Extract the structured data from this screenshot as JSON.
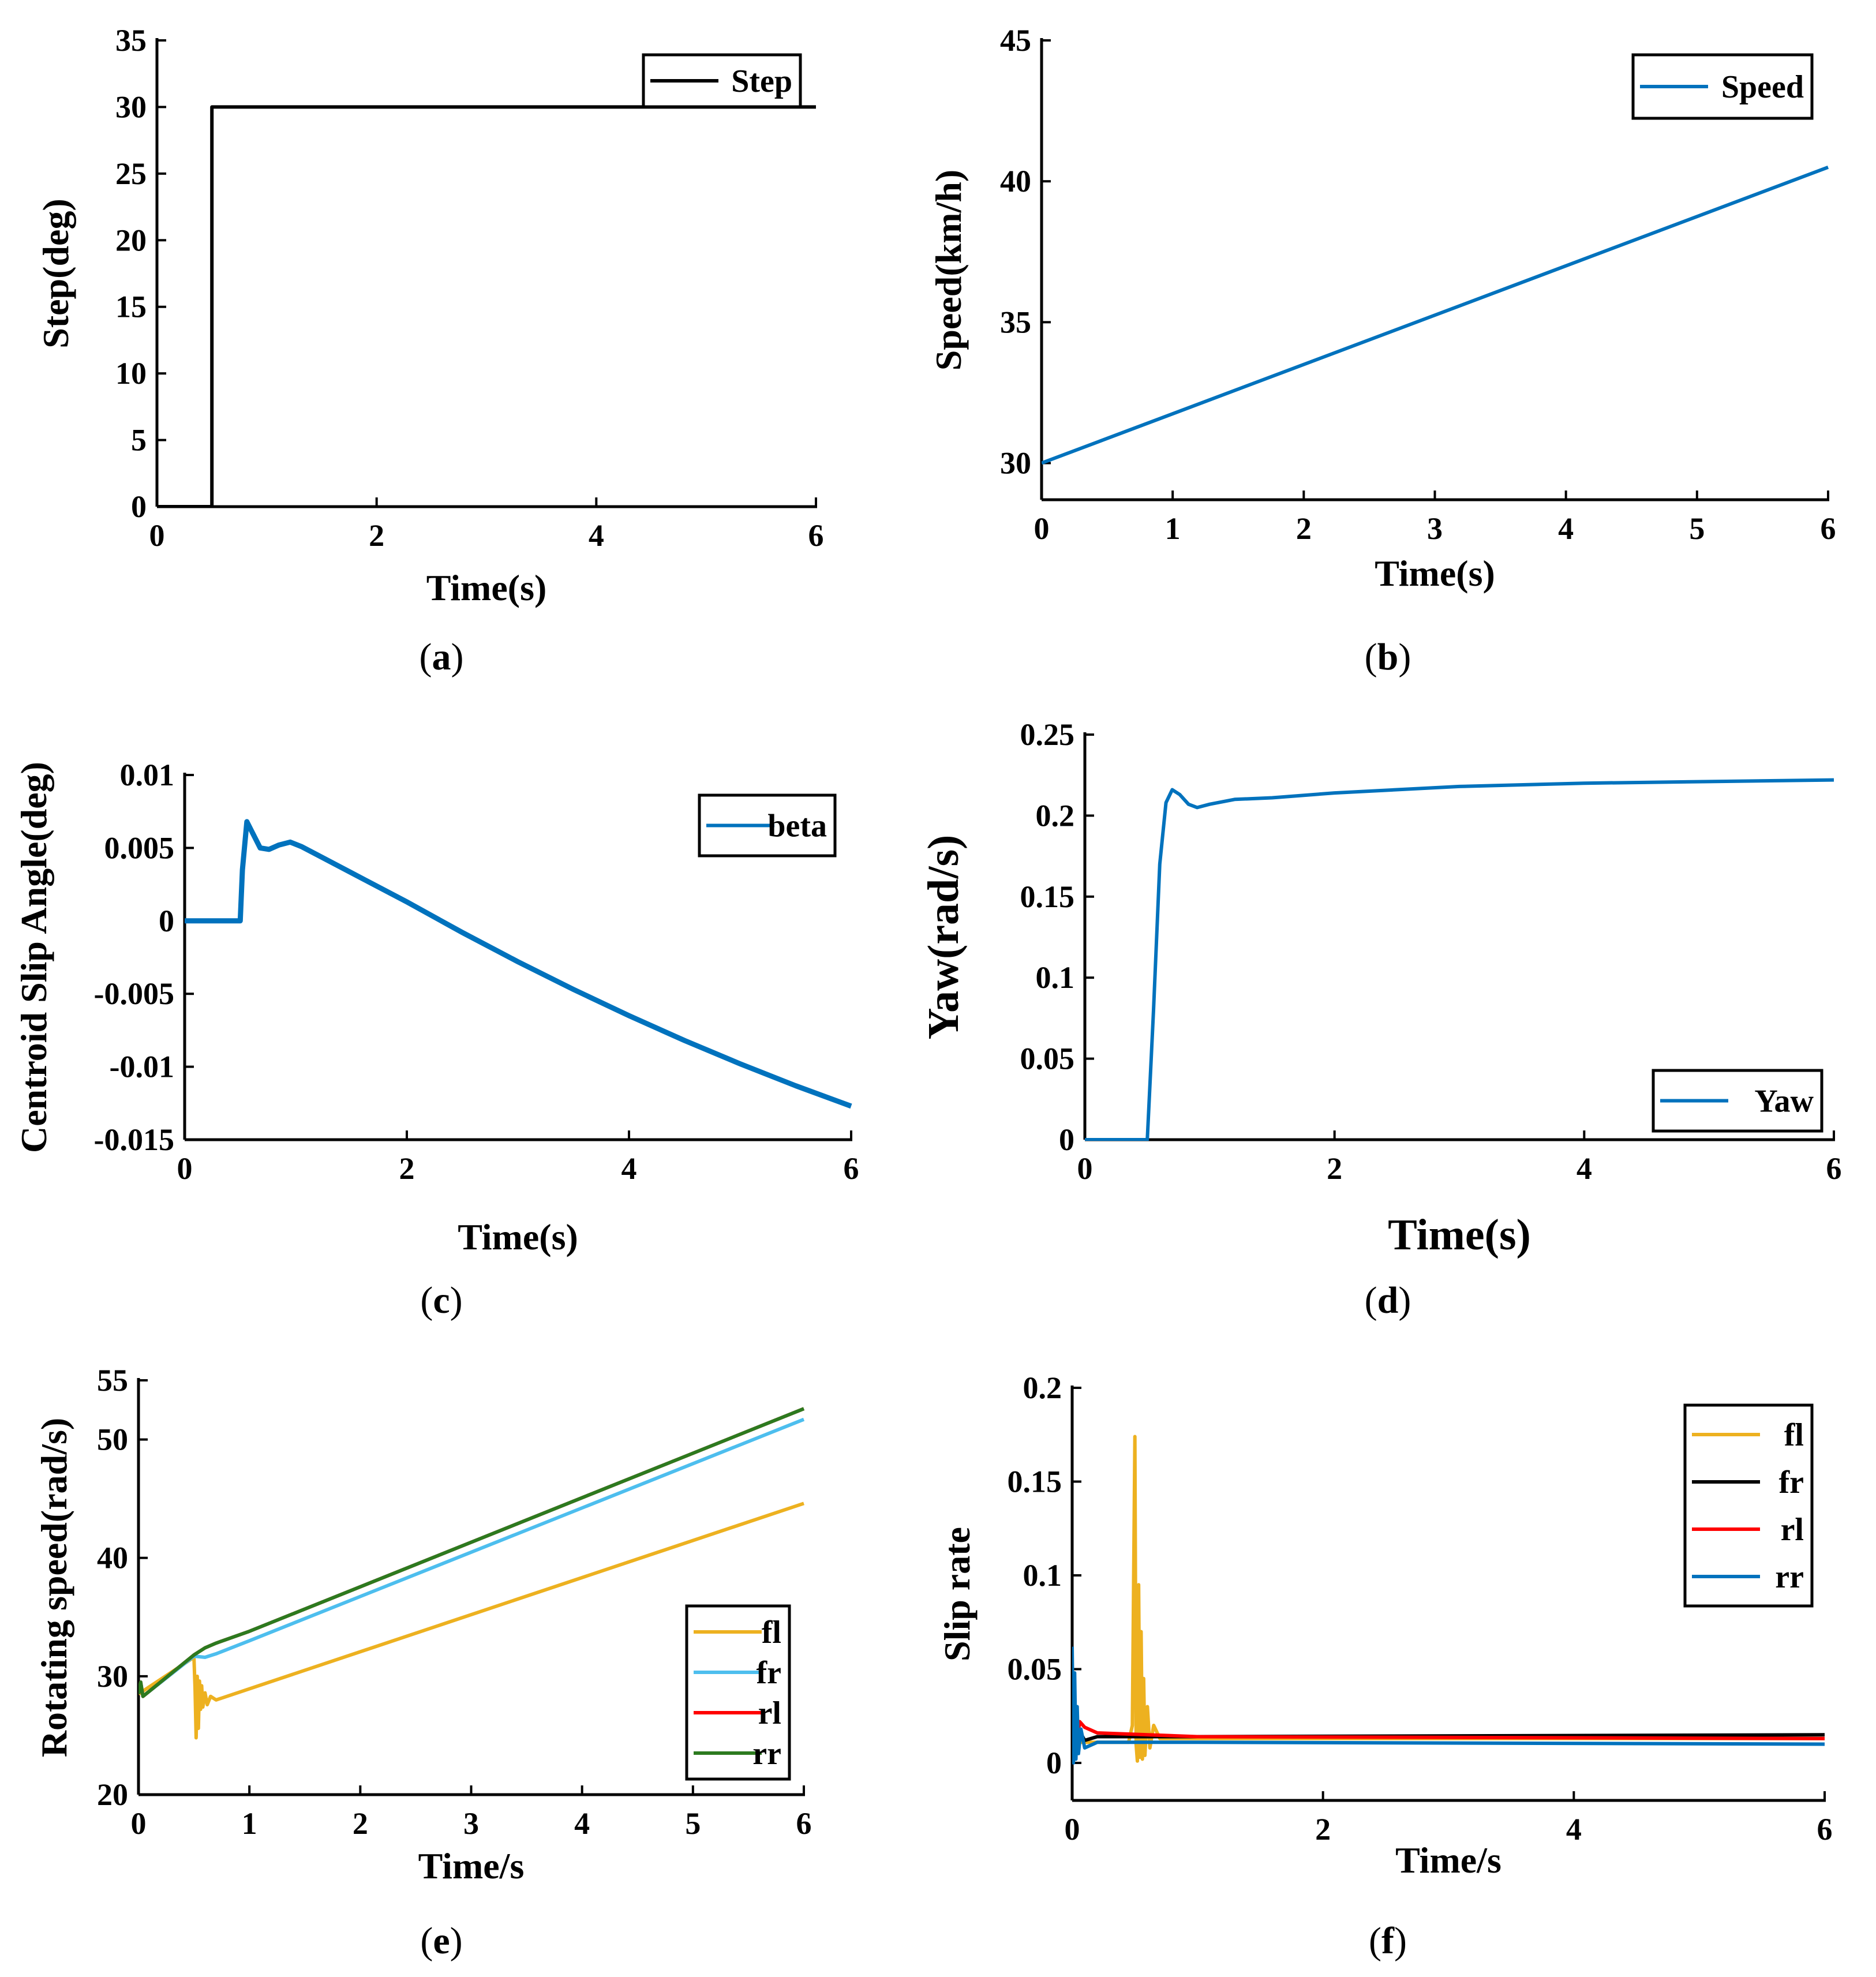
{
  "chart_data": [
    {
      "id": "a",
      "type": "line",
      "caption_letter": "a",
      "xlabel": "Time(s)",
      "ylabel": "Step(deg)",
      "xlim": [
        0,
        6
      ],
      "ylim": [
        0,
        35
      ],
      "xticks": [
        "0",
        "2",
        "4",
        "6"
      ],
      "yticks": [
        "0",
        "5",
        "10",
        "15",
        "20",
        "25",
        "30",
        "35"
      ],
      "legend_position": "top-right",
      "series": [
        {
          "name": "Step",
          "color": "#000000",
          "x": [
            0,
            0.5,
            0.5,
            6
          ],
          "y": [
            0,
            0,
            30,
            30
          ]
        }
      ]
    },
    {
      "id": "b",
      "type": "line",
      "caption_letter": "b",
      "xlabel": "Time(s)",
      "ylabel": "Speed(km/h)",
      "xlim": [
        0,
        6
      ],
      "ylim": [
        28.7,
        45
      ],
      "xticks": [
        "0",
        "1",
        "2",
        "3",
        "4",
        "5",
        "6"
      ],
      "yticks": [
        "30",
        "35",
        "40",
        "45"
      ],
      "legend_position": "top-right",
      "series": [
        {
          "name": "Speed",
          "color": "#0072BD",
          "x": [
            0,
            6
          ],
          "y": [
            30,
            40.5
          ]
        }
      ]
    },
    {
      "id": "c",
      "type": "line",
      "caption_letter": "c",
      "xlabel": "Time(s)",
      "ylabel": "Centroid Slip Angle(deg)",
      "xlim": [
        0,
        6
      ],
      "ylim": [
        -0.015,
        0.01
      ],
      "xticks": [
        "0",
        "2",
        "4",
        "6"
      ],
      "yticks": [
        "-0.015",
        "-0.01",
        "-0.005",
        "0",
        "0.005",
        "0.01"
      ],
      "legend_position": "top-right",
      "series": [
        {
          "name": "beta",
          "color": "#0072BD",
          "x": [
            0,
            0.5,
            0.52,
            0.56,
            0.6,
            0.68,
            0.76,
            0.85,
            0.95,
            1.05,
            1.2,
            1.5,
            2,
            2.5,
            3,
            3.5,
            4,
            4.5,
            5,
            5.5,
            6
          ],
          "y": [
            0,
            0,
            0.0035,
            0.0068,
            0.0062,
            0.005,
            0.0049,
            0.0052,
            0.0054,
            0.0051,
            0.0045,
            0.0033,
            0.0013,
            -0.0008,
            -0.0028,
            -0.0047,
            -0.0065,
            -0.0082,
            -0.0098,
            -0.0113,
            -0.0127
          ]
        }
      ]
    },
    {
      "id": "d",
      "type": "line",
      "caption_letter": "d",
      "xlabel": "Time(s)",
      "ylabel": "Yaw(rad/s)",
      "xlim": [
        0,
        6
      ],
      "ylim": [
        0,
        0.25
      ],
      "xticks": [
        "0",
        "2",
        "4",
        "6"
      ],
      "yticks": [
        "0",
        "0.05",
        "0.1",
        "0.15",
        "0.2",
        "0.25"
      ],
      "legend_position": "bottom-right",
      "series": [
        {
          "name": "Yaw",
          "color": "#0072BD",
          "x": [
            0,
            0.5,
            0.55,
            0.6,
            0.65,
            0.7,
            0.76,
            0.83,
            0.9,
            1.0,
            1.2,
            1.5,
            2,
            3,
            4,
            5,
            6
          ],
          "y": [
            0,
            0,
            0.08,
            0.17,
            0.208,
            0.216,
            0.213,
            0.207,
            0.205,
            0.207,
            0.21,
            0.211,
            0.214,
            0.218,
            0.22,
            0.221,
            0.222
          ]
        }
      ]
    },
    {
      "id": "e",
      "type": "line",
      "caption_letter": "e",
      "xlabel": "Time/s",
      "ylabel": "Rotating speed(rad/s)",
      "xlim": [
        0,
        6
      ],
      "ylim": [
        20,
        55
      ],
      "xticks": [
        "0",
        "1",
        "2",
        "3",
        "4",
        "5",
        "6"
      ],
      "yticks": [
        "20",
        "30",
        "40",
        "50",
        "55"
      ],
      "legend_position": "bottom-right",
      "series": [
        {
          "name": "fl",
          "color": "#EDB120",
          "x": [
            0,
            0.5,
            0.51,
            0.52,
            0.53,
            0.54,
            0.55,
            0.56,
            0.57,
            0.58,
            0.6,
            0.62,
            0.65,
            0.7,
            6
          ],
          "y": [
            28.5,
            31.6,
            29,
            24.8,
            30,
            25.6,
            29.6,
            27.2,
            29.2,
            27.4,
            28.6,
            27.6,
            28.3,
            28,
            44.6
          ]
        },
        {
          "name": "fr",
          "color": "#4DBEEE",
          "x": [
            0,
            0.02,
            0.04,
            0.5,
            0.6,
            0.7,
            1,
            6
          ],
          "y": [
            28.5,
            29.5,
            28.3,
            31.7,
            31.6,
            31.9,
            33,
            51.7
          ]
        },
        {
          "name": "rl",
          "color": "#FF0000",
          "x": [
            0,
            0.02,
            0.04,
            0.5,
            0.6,
            0.7,
            1,
            6
          ],
          "y": [
            28.5,
            29.5,
            28.3,
            31.8,
            32.4,
            32.8,
            33.8,
            52.6
          ]
        },
        {
          "name": "rr",
          "color": "#2C7A1F",
          "x": [
            0,
            0.02,
            0.04,
            0.5,
            0.6,
            0.7,
            1,
            6
          ],
          "y": [
            28.5,
            29.5,
            28.3,
            31.8,
            32.4,
            32.8,
            33.8,
            52.6
          ]
        }
      ]
    },
    {
      "id": "f",
      "type": "line",
      "caption_letter": "f",
      "xlabel": "Time/s",
      "ylabel": "Slip rate",
      "xlim": [
        0,
        6
      ],
      "ylim": [
        -0.02,
        0.2
      ],
      "xticks": [
        "0",
        "2",
        "4",
        "6"
      ],
      "yticks": [
        "0",
        "0.05",
        "0.1",
        "0.15",
        "0.2"
      ],
      "legend_position": "top-right",
      "series": [
        {
          "name": "fl",
          "color": "#EDB120",
          "x": [
            0,
            0.45,
            0.48,
            0.5,
            0.51,
            0.52,
            0.53,
            0.54,
            0.55,
            0.56,
            0.57,
            0.58,
            0.6,
            0.62,
            0.65,
            0.7,
            0.8,
            6
          ],
          "y": [
            0.011,
            0.011,
            0.02,
            0.174,
            0.01,
            0.001,
            0.095,
            0.003,
            0.07,
            0.002,
            0.045,
            0.004,
            0.03,
            0.008,
            0.02,
            0.013,
            0.013,
            0.013
          ]
        },
        {
          "name": "fr",
          "color": "#000000",
          "x": [
            0,
            0.02,
            0.05,
            0.1,
            0.2,
            1,
            6
          ],
          "y": [
            0.02,
            0.008,
            0.018,
            0.012,
            0.014,
            0.014,
            0.015
          ]
        },
        {
          "name": "rl",
          "color": "#FF0000",
          "x": [
            0,
            0.02,
            0.04,
            0.06,
            0.1,
            0.2,
            1,
            6
          ],
          "y": [
            0.02,
            0.025,
            0.012,
            0.022,
            0.019,
            0.016,
            0.014,
            0.013
          ]
        },
        {
          "name": "rr",
          "color": "#0072BD",
          "x": [
            0,
            0.01,
            0.02,
            0.03,
            0.04,
            0.05,
            0.07,
            0.1,
            0.2,
            1,
            6
          ],
          "y": [
            0.062,
            0.0,
            0.048,
            0.002,
            0.03,
            0.005,
            0.018,
            0.008,
            0.011,
            0.011,
            0.01
          ]
        }
      ]
    }
  ]
}
